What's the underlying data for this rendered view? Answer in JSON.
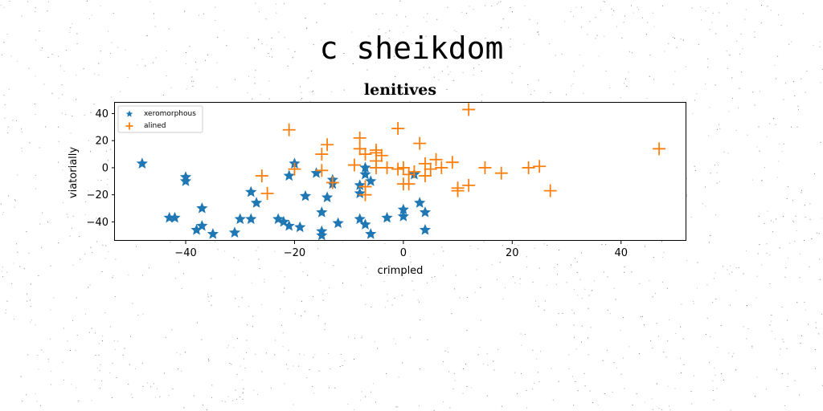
{
  "suptitle": "c sheikdom",
  "chart_data": {
    "type": "scatter",
    "title": "lenitives",
    "xlabel": "crimpled",
    "ylabel": "viatorially",
    "xlim": [
      -53,
      52
    ],
    "ylim": [
      -54,
      48
    ],
    "xticks": [
      -40,
      -20,
      0,
      20,
      40
    ],
    "yticks": [
      -40,
      -20,
      0,
      20,
      40
    ],
    "grid": false,
    "legend_position": "top-left",
    "series": [
      {
        "name": "xeromorphous",
        "marker": "star",
        "color": "#1f77b4",
        "points": [
          [
            -48,
            3
          ],
          [
            -43,
            -37
          ],
          [
            -42,
            -37
          ],
          [
            -40,
            -7
          ],
          [
            -40,
            -10
          ],
          [
            -38,
            -46
          ],
          [
            -37,
            -30
          ],
          [
            -37,
            -43
          ],
          [
            -35,
            -49
          ],
          [
            -31,
            -48
          ],
          [
            -30,
            -38
          ],
          [
            -28,
            -18
          ],
          [
            -28,
            -38
          ],
          [
            -27,
            -26
          ],
          [
            -23,
            -38
          ],
          [
            -22,
            -40
          ],
          [
            -21,
            -43
          ],
          [
            -21,
            -6
          ],
          [
            -20,
            3
          ],
          [
            -19,
            -44
          ],
          [
            -18,
            -21
          ],
          [
            -16,
            -4
          ],
          [
            -15,
            -33
          ],
          [
            -15,
            -47
          ],
          [
            -15,
            -50
          ],
          [
            -14,
            -22
          ],
          [
            -13,
            -9
          ],
          [
            -13,
            -12
          ],
          [
            -12,
            -41
          ],
          [
            -8,
            -13
          ],
          [
            -8,
            -19
          ],
          [
            -8,
            -38
          ],
          [
            -7,
            -42
          ],
          [
            -7,
            0
          ],
          [
            -7,
            -5
          ],
          [
            -6,
            -10
          ],
          [
            -6,
            -49
          ],
          [
            -3,
            -37
          ],
          [
            0,
            -31
          ],
          [
            0,
            -36
          ],
          [
            2,
            -5
          ],
          [
            3,
            -26
          ],
          [
            4,
            -33
          ],
          [
            4,
            -46
          ]
        ]
      },
      {
        "name": "alined",
        "marker": "plus",
        "color": "#ff7f0e",
        "points": [
          [
            -26,
            -6
          ],
          [
            -25,
            -19
          ],
          [
            -21,
            28
          ],
          [
            -20,
            -1
          ],
          [
            -15,
            10
          ],
          [
            -15,
            -2
          ],
          [
            -14,
            17
          ],
          [
            -13,
            -11
          ],
          [
            -9,
            2
          ],
          [
            -8,
            22
          ],
          [
            -8,
            14
          ],
          [
            -7,
            10
          ],
          [
            -7,
            -14
          ],
          [
            -7,
            -20
          ],
          [
            -5,
            11
          ],
          [
            -5,
            13
          ],
          [
            -5,
            5
          ],
          [
            -5,
            0
          ],
          [
            -4,
            9
          ],
          [
            -3,
            0
          ],
          [
            -1,
            -1
          ],
          [
            -1,
            29
          ],
          [
            0,
            0
          ],
          [
            0,
            -12
          ],
          [
            1,
            -5
          ],
          [
            1,
            -12
          ],
          [
            2,
            -3
          ],
          [
            3,
            18
          ],
          [
            4,
            3
          ],
          [
            4,
            -6
          ],
          [
            5,
            -1
          ],
          [
            6,
            6
          ],
          [
            7,
            0
          ],
          [
            9,
            4
          ],
          [
            10,
            -15
          ],
          [
            10,
            -17
          ],
          [
            12,
            43
          ],
          [
            12,
            -13
          ],
          [
            15,
            0
          ],
          [
            18,
            -4
          ],
          [
            23,
            0
          ],
          [
            25,
            1
          ],
          [
            27,
            -17
          ],
          [
            47,
            14
          ]
        ]
      }
    ]
  }
}
